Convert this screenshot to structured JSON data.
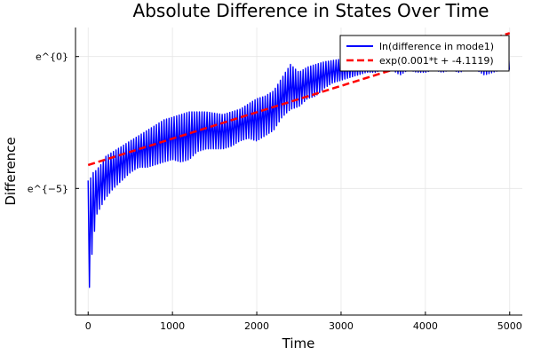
{
  "chart_data": {
    "type": "line",
    "title": "Absolute Difference in States Over Time",
    "xlabel": "Time",
    "ylabel": "Difference",
    "xlim": [
      -150,
      5150
    ],
    "ylim": [
      -9.8,
      1.1
    ],
    "yscale": "log",
    "x_ticks": [
      0,
      1000,
      2000,
      3000,
      4000,
      5000
    ],
    "x_tick_labels": [
      "0",
      "1000",
      "2000",
      "3000",
      "4000",
      "5000"
    ],
    "y_ticks": [
      0,
      -5
    ],
    "y_tick_labels": [
      "e^{0}",
      "e^{−5}"
    ],
    "grid": true,
    "legend_position": "top-right",
    "series": [
      {
        "name": "ln(difference in mode1)",
        "color": "#0000ff",
        "style": "solid",
        "envelope": {
          "x": [
            0,
            30,
            60,
            100,
            150,
            200,
            300,
            400,
            500,
            600,
            700,
            800,
            900,
            1000,
            1100,
            1200,
            1300,
            1400,
            1500,
            1600,
            1700,
            1800,
            1900,
            2000,
            2100,
            2200,
            2300,
            2400,
            2500,
            2600,
            2700,
            2800,
            2900,
            3000,
            3100,
            3200,
            3300,
            3400,
            3500,
            3600,
            3700,
            3800,
            3900,
            4000,
            4100,
            4200,
            4300,
            4400,
            4500,
            4600,
            4700,
            4800,
            4900,
            5000
          ],
          "upper": [
            -4.7,
            -4.6,
            -4.4,
            -4.3,
            -4.1,
            -3.8,
            -3.6,
            -3.4,
            -3.2,
            -3.0,
            -2.8,
            -2.6,
            -2.4,
            -2.3,
            -2.2,
            -2.1,
            -2.1,
            -2.1,
            -2.15,
            -2.2,
            -2.1,
            -2.0,
            -1.8,
            -1.6,
            -1.5,
            -1.3,
            -0.8,
            -0.3,
            -0.6,
            -0.4,
            -0.3,
            -0.2,
            -0.15,
            -0.1,
            -0.05,
            0.0,
            0.0,
            0.05,
            0.1,
            0.1,
            0.1,
            0.2,
            0.3,
            0.3,
            0.3,
            0.35,
            0.4,
            0.45,
            0.4,
            0.35,
            0.4,
            0.45,
            0.5,
            0.6
          ],
          "lower": [
            -9.5,
            -8.0,
            -7.0,
            -6.0,
            -5.7,
            -5.4,
            -5.0,
            -4.7,
            -4.4,
            -4.2,
            -4.2,
            -4.1,
            -4.0,
            -3.9,
            -4.0,
            -3.9,
            -3.6,
            -3.5,
            -3.5,
            -3.5,
            -3.4,
            -3.2,
            -3.1,
            -3.2,
            -3.0,
            -2.8,
            -2.3,
            -2.0,
            -1.9,
            -1.6,
            -1.5,
            -1.2,
            -1.0,
            -0.9,
            -0.8,
            -0.7,
            -0.6,
            -0.6,
            -0.5,
            -0.5,
            -0.7,
            -0.5,
            -0.6,
            -0.6,
            -0.5,
            -0.6,
            -0.5,
            -0.6,
            -0.5,
            -0.5,
            -0.7,
            -0.6,
            -0.5,
            -0.5
          ]
        }
      },
      {
        "name": "exp(0.001*t + -4.1119)",
        "color": "#ff0000",
        "style": "dashed",
        "slope": 0.001,
        "intercept": -4.1119
      }
    ]
  }
}
